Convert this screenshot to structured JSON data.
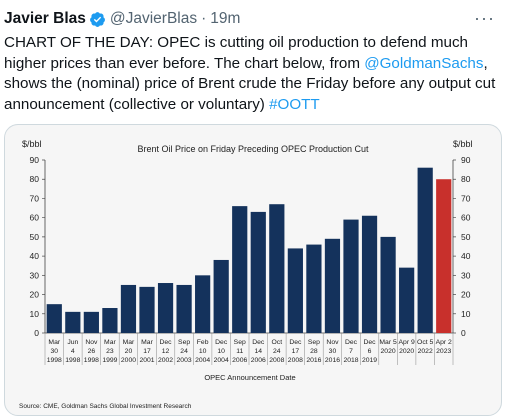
{
  "tweet": {
    "author_name": "Javier Blas",
    "handle": "@JavierBlas",
    "separator": "·",
    "time": "19m",
    "more_label": "···",
    "text_part1": "CHART OF THE DAY: OPEC is cutting oil production to defend much higher prices than ever before. The chart below, from ",
    "mention": "@GoldmanSachs",
    "text_part2": ", shows the (nominal) price of Brent crude the Friday before any output cut announcement (collective or voluntary) ",
    "hashtag": "#OOTT"
  },
  "chart_data": {
    "type": "bar",
    "title": "Brent Oil Price on Friday Preceding OPEC Production Cut",
    "ylabel_left": "$/bbl",
    "ylabel_right": "$/bbl",
    "xlabel": "OPEC Announcement Date",
    "source": "Source: CME, Goldman Sachs Global Investment Research",
    "ylim": [
      0,
      90
    ],
    "yticks": [
      0,
      10,
      20,
      30,
      40,
      50,
      60,
      70,
      80,
      90
    ],
    "bar_color": "#14325c",
    "highlight_color": "#c8302c",
    "categories": [
      {
        "month": "Mar",
        "day": "30",
        "year": "1998"
      },
      {
        "month": "Jun",
        "day": "4",
        "year": "1998"
      },
      {
        "month": "Nov",
        "day": "26",
        "year": "1998"
      },
      {
        "month": "Mar",
        "day": "23",
        "year": "1999"
      },
      {
        "month": "Mar",
        "day": "20",
        "year": "2000"
      },
      {
        "month": "Mar",
        "day": "17",
        "year": "2001"
      },
      {
        "month": "Dec",
        "day": "12",
        "year": "2002"
      },
      {
        "month": "Sep",
        "day": "24",
        "year": "2003"
      },
      {
        "month": "Feb",
        "day": "10",
        "year": "2004"
      },
      {
        "month": "Dec",
        "day": "10",
        "year": "2004"
      },
      {
        "month": "Sep",
        "day": "11",
        "year": "2006"
      },
      {
        "month": "Dec",
        "day": "14",
        "year": "2006"
      },
      {
        "month": "Oct",
        "day": "24",
        "year": "2008"
      },
      {
        "month": "Dec",
        "day": "17",
        "year": "2008"
      },
      {
        "month": "Sep",
        "day": "28",
        "year": "2016"
      },
      {
        "month": "Nov",
        "day": "30",
        "year": "2016"
      },
      {
        "month": "Dec",
        "day": "7",
        "year": "2018"
      },
      {
        "month": "Dec",
        "day": "6",
        "year": "2019"
      },
      {
        "month": "Mar 5",
        "day": "",
        "year": "2020"
      },
      {
        "month": "Apr 9",
        "day": "",
        "year": "2020"
      },
      {
        "month": "Oct 5",
        "day": "",
        "year": "2022"
      },
      {
        "month": "Apr 2",
        "day": "",
        "year": "2023"
      }
    ],
    "values": [
      15,
      11,
      11,
      13,
      25,
      24,
      26,
      25,
      30,
      38,
      66,
      63,
      67,
      44,
      46,
      49,
      59,
      61,
      50,
      34,
      86,
      80
    ],
    "highlight_index": 21
  }
}
